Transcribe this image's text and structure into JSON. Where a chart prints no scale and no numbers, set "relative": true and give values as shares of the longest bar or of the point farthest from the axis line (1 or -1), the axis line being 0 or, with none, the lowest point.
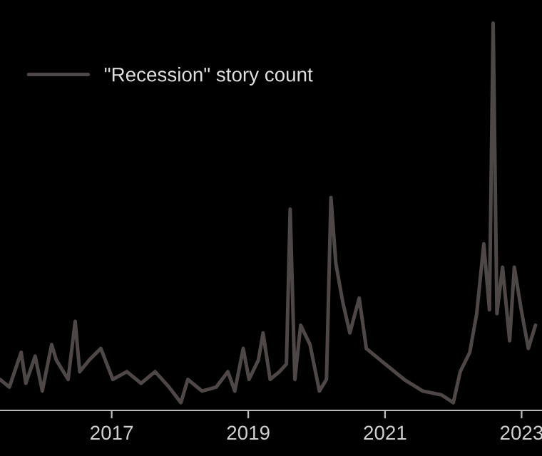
{
  "chart_data": {
    "type": "line",
    "relative": true,
    "legend": "top left",
    "grid": false,
    "x": [
      "2015-05-15",
      "2015-07-04",
      "2015-09-05",
      "2015-09-30",
      "2015-11-19",
      "2015-12-27",
      "2016-02-15",
      "2016-03-11",
      "2016-05-13",
      "2016-06-20",
      "2016-07-14",
      "2016-09-03",
      "2016-11-04",
      "2017-01-07",
      "2017-03-23",
      "2017-06-07",
      "2017-08-21",
      "2017-11-04",
      "2018-01-06",
      "2018-02-12",
      "2018-04-29",
      "2018-07-13",
      "2018-09-14",
      "2018-10-21",
      "2018-12-05",
      "2019-01-05",
      "2019-02-24",
      "2019-03-21",
      "2019-04-28",
      "2019-06-17",
      "2019-07-24",
      "2019-08-13",
      "2019-09-07",
      "2019-10-08",
      "2019-11-27",
      "2020-01-16",
      "2020-02-23",
      "2020-03-18",
      "2020-04-13",
      "2020-05-20",
      "2020-06-27",
      "2020-08-16",
      "2020-09-23",
      "2020-12-07",
      "2021-01-27",
      "2021-04-13",
      "2021-07-22",
      "2021-10-30",
      "2022-01-01",
      "2022-02-07",
      "2022-03-30",
      "2022-05-06",
      "2022-06-13",
      "2022-07-13",
      "2022-08-02",
      "2022-08-22",
      "2022-09-21",
      "2022-10-29",
      "2022-11-23",
      "2022-12-30",
      "2023-02-06",
      "2023-03-16"
    ],
    "xlim": [
      "2015-05-15",
      "2023-04-20"
    ],
    "xticks": [
      {
        "value": "2017",
        "label": "2017"
      },
      {
        "value": "2019",
        "label": "2019"
      },
      {
        "value": "2021",
        "label": "2021"
      },
      {
        "value": "2023",
        "label": "2023"
      }
    ],
    "series": [
      {
        "name": "\"Recession\" story count",
        "color": "#4d4747",
        "values": [
          0.08,
          0.06,
          0.15,
          0.07,
          0.14,
          0.05,
          0.17,
          0.13,
          0.08,
          0.23,
          0.1,
          0.13,
          0.16,
          0.08,
          0.1,
          0.07,
          0.1,
          0.06,
          0.02,
          0.08,
          0.05,
          0.06,
          0.1,
          0.05,
          0.16,
          0.08,
          0.13,
          0.2,
          0.08,
          0.1,
          0.12,
          0.52,
          0.08,
          0.22,
          0.17,
          0.05,
          0.08,
          0.55,
          0.38,
          0.28,
          0.2,
          0.29,
          0.16,
          0.13,
          0.11,
          0.08,
          0.05,
          0.04,
          0.02,
          0.1,
          0.15,
          0.25,
          0.43,
          0.26,
          1,
          0.25,
          0.37,
          0.18,
          0.37,
          0.26,
          0.16,
          0.22
        ]
      }
    ]
  }
}
